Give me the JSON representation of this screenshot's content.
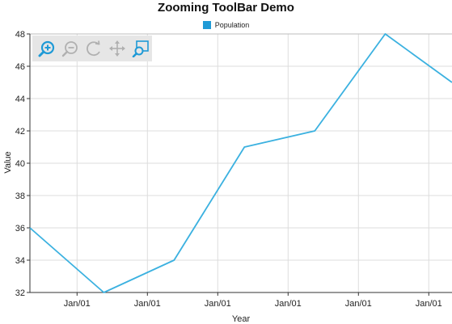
{
  "chart_data": {
    "type": "line",
    "title": "Zooming ToolBar Demo",
    "xlabel": "Year",
    "ylabel": "Value",
    "ylim": [
      32,
      48
    ],
    "y_ticks": [
      32,
      34,
      36,
      38,
      40,
      42,
      44,
      46,
      48
    ],
    "x_tick_labels": [
      "Jan/01",
      "Jan/01",
      "Jan/01",
      "Jan/01",
      "Jan/01",
      "Jan/01"
    ],
    "grid": true,
    "legend_position": "top",
    "series": [
      {
        "name": "Population",
        "color": "#3bb1e0",
        "points": [
          {
            "x": 0.0,
            "y": 36
          },
          {
            "x": 1.05,
            "y": 32
          },
          {
            "x": 2.05,
            "y": 34
          },
          {
            "x": 3.05,
            "y": 41
          },
          {
            "x": 4.05,
            "y": 42
          },
          {
            "x": 5.05,
            "y": 48
          },
          {
            "x": 6.0,
            "y": 45
          }
        ]
      }
    ],
    "x_domain": [
      0,
      6.0
    ],
    "x_tick_positions": [
      0.67,
      1.67,
      2.67,
      3.67,
      4.67,
      5.67
    ]
  },
  "toolbar": {
    "tools": [
      {
        "name": "zoom-in-icon",
        "color": "#1f9ad6"
      },
      {
        "name": "zoom-out-icon",
        "color": "#b0b0b0"
      },
      {
        "name": "reset-icon",
        "color": "#b0b0b0"
      },
      {
        "name": "pan-icon",
        "color": "#b0b0b0"
      },
      {
        "name": "selection-zoom-icon",
        "color": "#1f9ad6"
      }
    ]
  },
  "colors": {
    "grid": "#dcdcdc",
    "axis": "#333333",
    "legend_swatch": "#1f9ad6"
  }
}
